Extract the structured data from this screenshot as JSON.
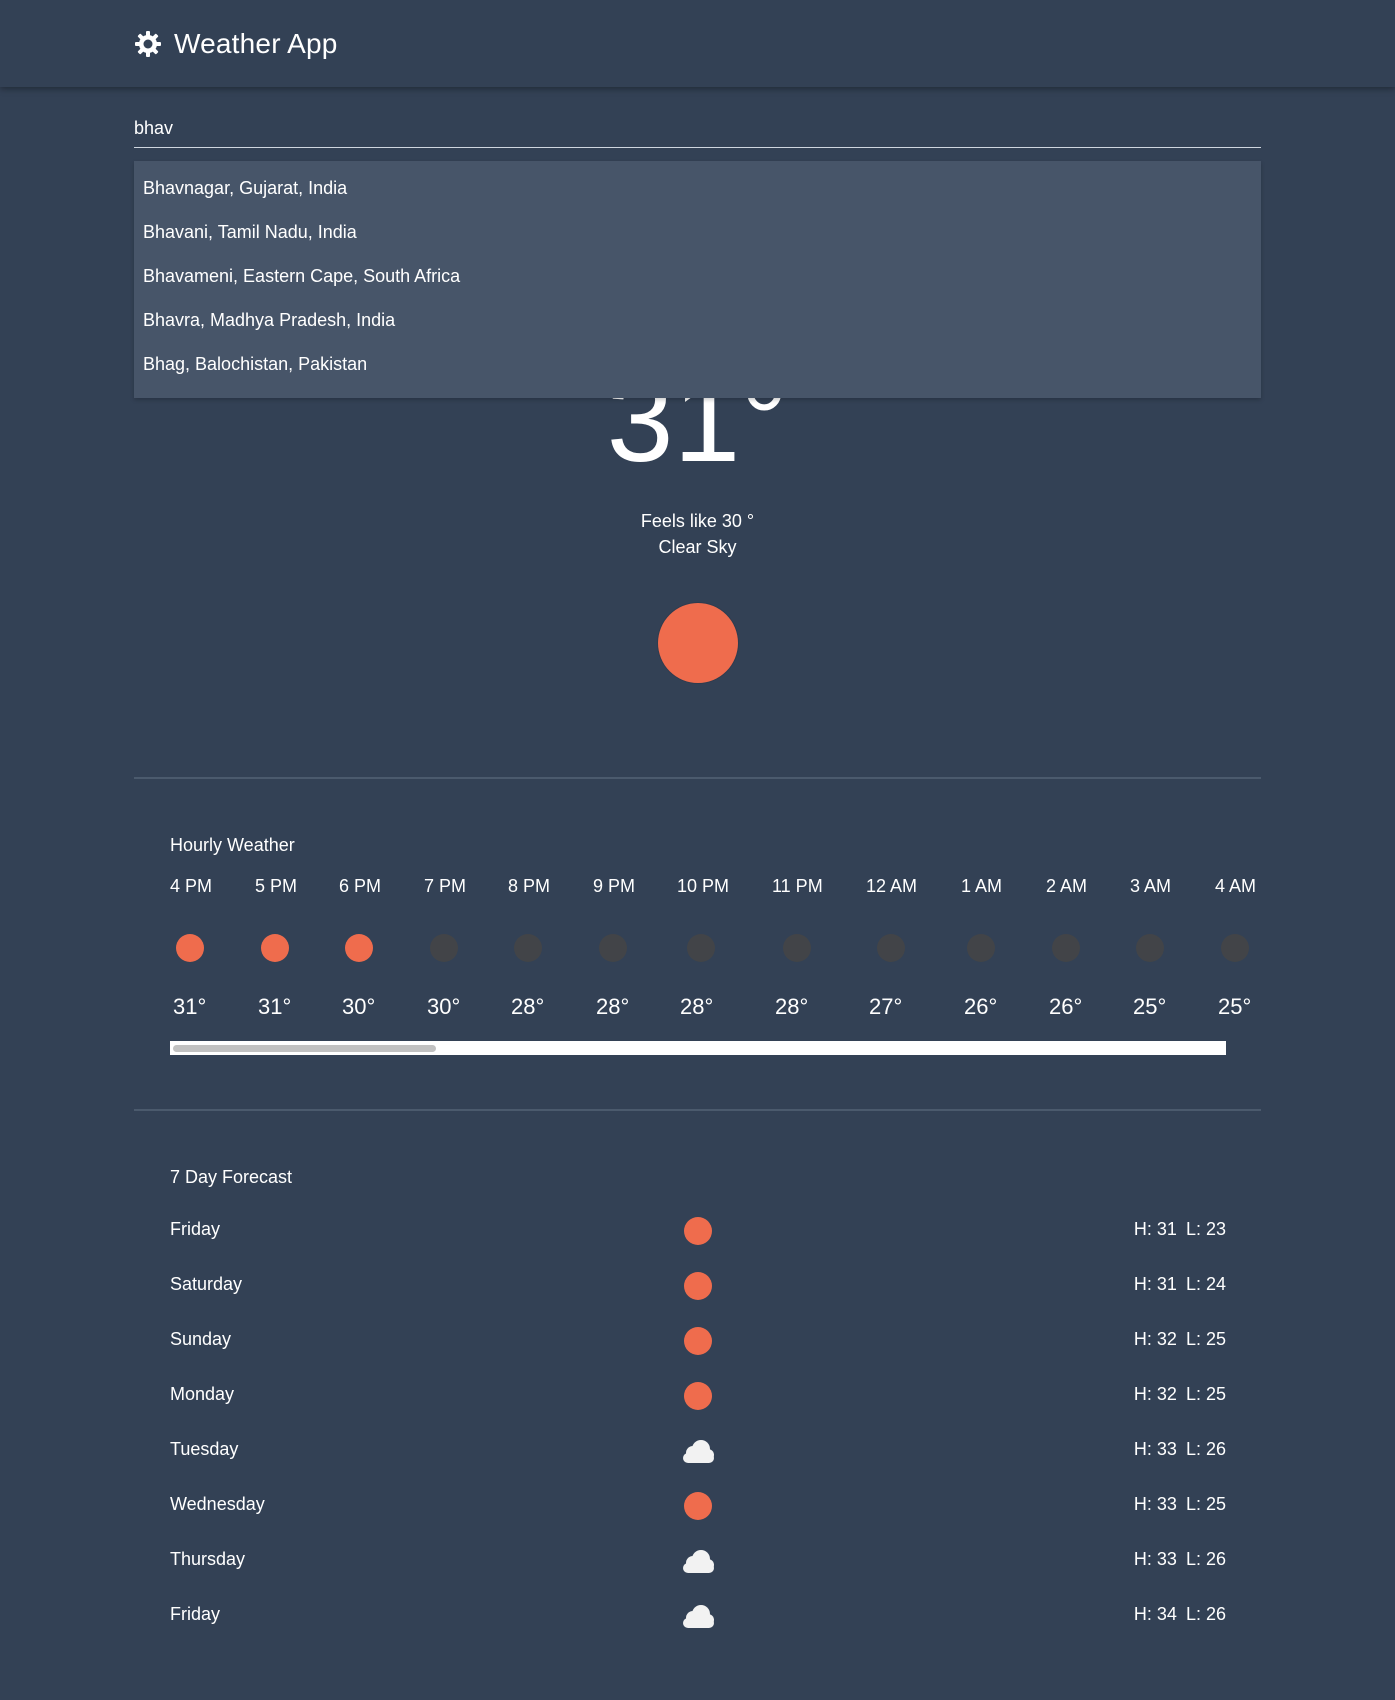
{
  "app": {
    "title": "Weather App",
    "icon": "sun-gear-icon"
  },
  "search": {
    "value": "bhav",
    "placeholder": ""
  },
  "suggestions": [
    "Bhavnagar, Gujarat, India",
    "Bhavani, Tamil Nadu, India",
    "Bhavameni, Eastern Cape, South Africa",
    "Bhavra, Madhya Pradesh, India",
    "Bhag, Balochistan, Pakistan"
  ],
  "current": {
    "temperature": "31°",
    "feels_like": "Feels like 30 °",
    "condition": "Clear Sky",
    "icon": "sun-icon"
  },
  "hourly": {
    "title": "Hourly Weather",
    "items": [
      {
        "time": "4 PM",
        "temp": "31°",
        "icon": "sun-icon"
      },
      {
        "time": "5 PM",
        "temp": "31°",
        "icon": "sun-icon"
      },
      {
        "time": "6 PM",
        "temp": "30°",
        "icon": "sun-icon"
      },
      {
        "time": "7 PM",
        "temp": "30°",
        "icon": "moon-icon"
      },
      {
        "time": "8 PM",
        "temp": "28°",
        "icon": "moon-icon"
      },
      {
        "time": "9 PM",
        "temp": "28°",
        "icon": "moon-icon"
      },
      {
        "time": "10 PM",
        "temp": "28°",
        "icon": "moon-icon"
      },
      {
        "time": "11 PM",
        "temp": "28°",
        "icon": "moon-icon"
      },
      {
        "time": "12 AM",
        "temp": "27°",
        "icon": "moon-icon"
      },
      {
        "time": "1 AM",
        "temp": "26°",
        "icon": "moon-icon"
      },
      {
        "time": "2 AM",
        "temp": "26°",
        "icon": "moon-icon"
      },
      {
        "time": "3 AM",
        "temp": "25°",
        "icon": "moon-icon"
      },
      {
        "time": "4 AM",
        "temp": "25°",
        "icon": "moon-icon"
      }
    ]
  },
  "daily": {
    "title": "7 Day Forecast",
    "items": [
      {
        "day": "Friday",
        "high": "H: 31",
        "low": "L: 23",
        "icon": "sun-icon"
      },
      {
        "day": "Saturday",
        "high": "H: 31",
        "low": "L: 24",
        "icon": "sun-icon"
      },
      {
        "day": "Sunday",
        "high": "H: 32",
        "low": "L: 25",
        "icon": "sun-icon"
      },
      {
        "day": "Monday",
        "high": "H: 32",
        "low": "L: 25",
        "icon": "sun-icon"
      },
      {
        "day": "Tuesday",
        "high": "H: 33",
        "low": "L: 26",
        "icon": "cloud-icon"
      },
      {
        "day": "Wednesday",
        "high": "H: 33",
        "low": "L: 25",
        "icon": "sun-icon"
      },
      {
        "day": "Thursday",
        "high": "H: 33",
        "low": "L: 26",
        "icon": "cloud-icon"
      },
      {
        "day": "Friday",
        "high": "H: 34",
        "low": "L: 26",
        "icon": "cloud-icon"
      }
    ]
  },
  "colors": {
    "background": "#334155",
    "dropdown": "#475569",
    "sun": "#ef6c4d",
    "moon": "#424448",
    "text": "#ffffff"
  }
}
